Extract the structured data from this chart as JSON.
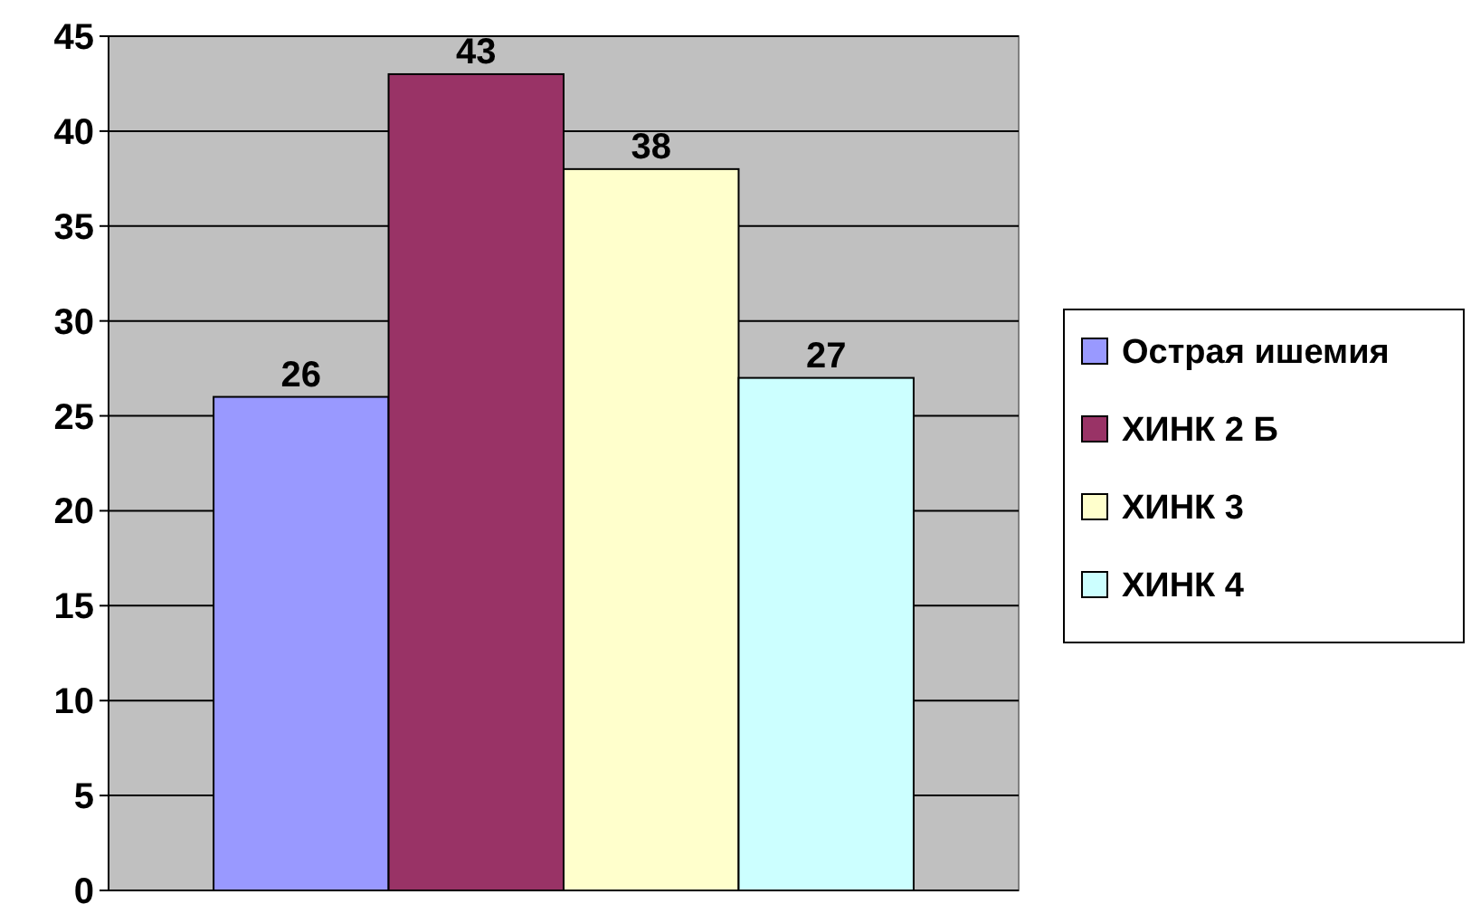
{
  "chart_data": {
    "type": "bar",
    "categories": [
      null
    ],
    "series": [
      {
        "name": "Острая ишемия",
        "color": "#9999ff",
        "values": [
          26
        ]
      },
      {
        "name": "ХИНК 2 Б",
        "color": "#993366",
        "values": [
          43
        ]
      },
      {
        "name": "ХИНК 3",
        "color": "#ffffcc",
        "values": [
          38
        ]
      },
      {
        "name": "ХИНК 4",
        "color": "#ccffff",
        "values": [
          27
        ]
      }
    ],
    "ylim": [
      0,
      45
    ],
    "yticks": [
      0,
      5,
      10,
      15,
      20,
      25,
      30,
      35,
      40,
      45
    ],
    "grid": "y",
    "legend": "right",
    "data_labels": true
  }
}
